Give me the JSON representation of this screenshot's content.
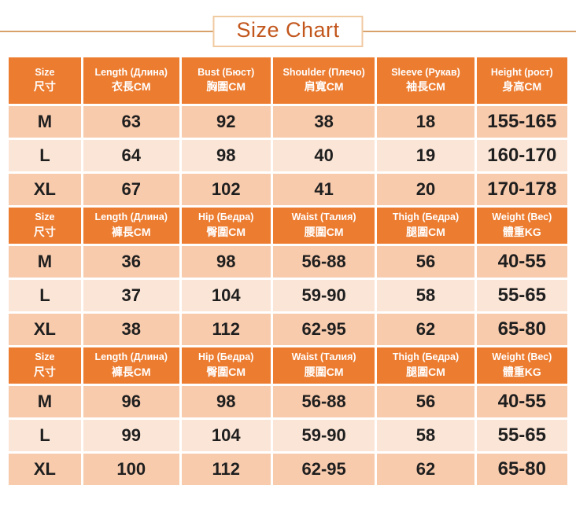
{
  "title": "Size Chart",
  "colors": {
    "header_bg": "#ec7c30",
    "row_dark": "#f8cbad",
    "row_light": "#fbe5d6",
    "title_text": "#c2571d",
    "title_border": "#f0c9a0",
    "divider_line": "#d8a06b",
    "cell_text": "#1f1f1f",
    "header_text": "#ffffff"
  },
  "tables": [
    {
      "headers": [
        {
          "en": "Size",
          "cjk": "尺寸"
        },
        {
          "en": "Length (Длина)",
          "cjk": "衣長CM"
        },
        {
          "en": "Bust (Бюст)",
          "cjk": "胸圍CM"
        },
        {
          "en": "Shoulder (Плечо)",
          "cjk": "肩寬CM"
        },
        {
          "en": "Sleeve (Рукав)",
          "cjk": "袖長CM"
        },
        {
          "en": "Height (рост)",
          "cjk": "身高CM"
        }
      ],
      "rows": [
        [
          "M",
          "63",
          "92",
          "38",
          "18",
          "155-165"
        ],
        [
          "L",
          "64",
          "98",
          "40",
          "19",
          "160-170"
        ],
        [
          "XL",
          "67",
          "102",
          "41",
          "20",
          "170-178"
        ]
      ]
    },
    {
      "headers": [
        {
          "en": "Size",
          "cjk": "尺寸"
        },
        {
          "en": "Length (Длина)",
          "cjk": "褲長CM"
        },
        {
          "en": "Hip (Бедра)",
          "cjk": "臀圍CM"
        },
        {
          "en": "Waist (Талия)",
          "cjk": "腰圍CM"
        },
        {
          "en": "Thigh (Бедра)",
          "cjk": "腿圍CM"
        },
        {
          "en": "Weight (Вес)",
          "cjk": "體重KG"
        }
      ],
      "rows": [
        [
          "M",
          "36",
          "98",
          "56-88",
          "56",
          "40-55"
        ],
        [
          "L",
          "37",
          "104",
          "59-90",
          "58",
          "55-65"
        ],
        [
          "XL",
          "38",
          "112",
          "62-95",
          "62",
          "65-80"
        ]
      ]
    },
    {
      "headers": [
        {
          "en": "Size",
          "cjk": "尺寸"
        },
        {
          "en": "Length (Длина)",
          "cjk": "褲長CM"
        },
        {
          "en": "Hip (Бедра)",
          "cjk": "臀圍CM"
        },
        {
          "en": "Waist (Талия)",
          "cjk": "腰圍CM"
        },
        {
          "en": "Thigh (Бедра)",
          "cjk": "腿圍CM"
        },
        {
          "en": "Weight (Вес)",
          "cjk": "體重KG"
        }
      ],
      "rows": [
        [
          "M",
          "96",
          "98",
          "56-88",
          "56",
          "40-55"
        ],
        [
          "L",
          "99",
          "104",
          "59-90",
          "58",
          "55-65"
        ],
        [
          "XL",
          "100",
          "112",
          "62-95",
          "62",
          "65-80"
        ]
      ]
    }
  ]
}
